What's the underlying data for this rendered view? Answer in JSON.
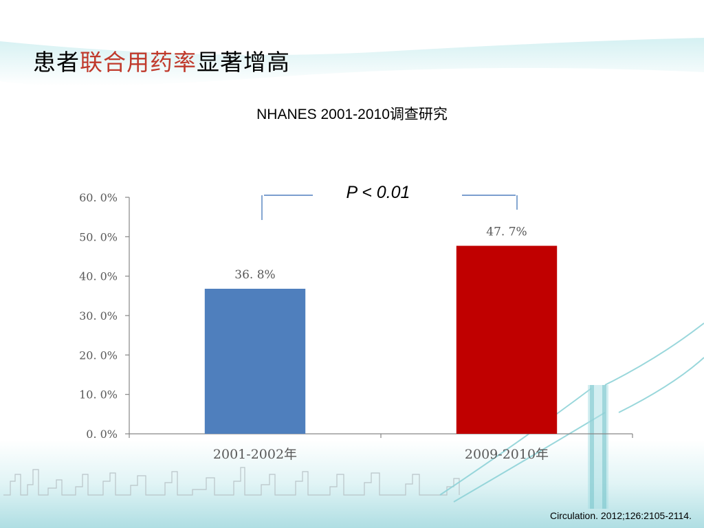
{
  "slide": {
    "title_prefix": "患者",
    "title_highlight": "联合用药率",
    "title_suffix": "显著增高",
    "subtitle": "NHANES 2001-2010调查研究",
    "p_value": "P < 0.01",
    "citation": "Circulation. 2012;126:2105-2114."
  },
  "colors": {
    "highlight_text": "#c0392b",
    "bar_1": "#4f7fbd",
    "bar_2": "#c00000",
    "bracket": "#4f7fbd",
    "background_accent": "#a9dfe3"
  },
  "chart_data": {
    "type": "bar",
    "categories": [
      "2001-2002年",
      "2009-2010年"
    ],
    "values": [
      36.8,
      47.7
    ],
    "data_labels": [
      "36. 8%",
      "47. 7%"
    ],
    "y_tick_labels": [
      "0. 0%",
      "10. 0%",
      "20. 0%",
      "30. 0%",
      "40. 0%",
      "50. 0%",
      "60. 0%"
    ],
    "ylim": [
      0,
      60
    ],
    "grid": false,
    "legend": "none",
    "title": "",
    "xlabel": "",
    "ylabel": ""
  }
}
